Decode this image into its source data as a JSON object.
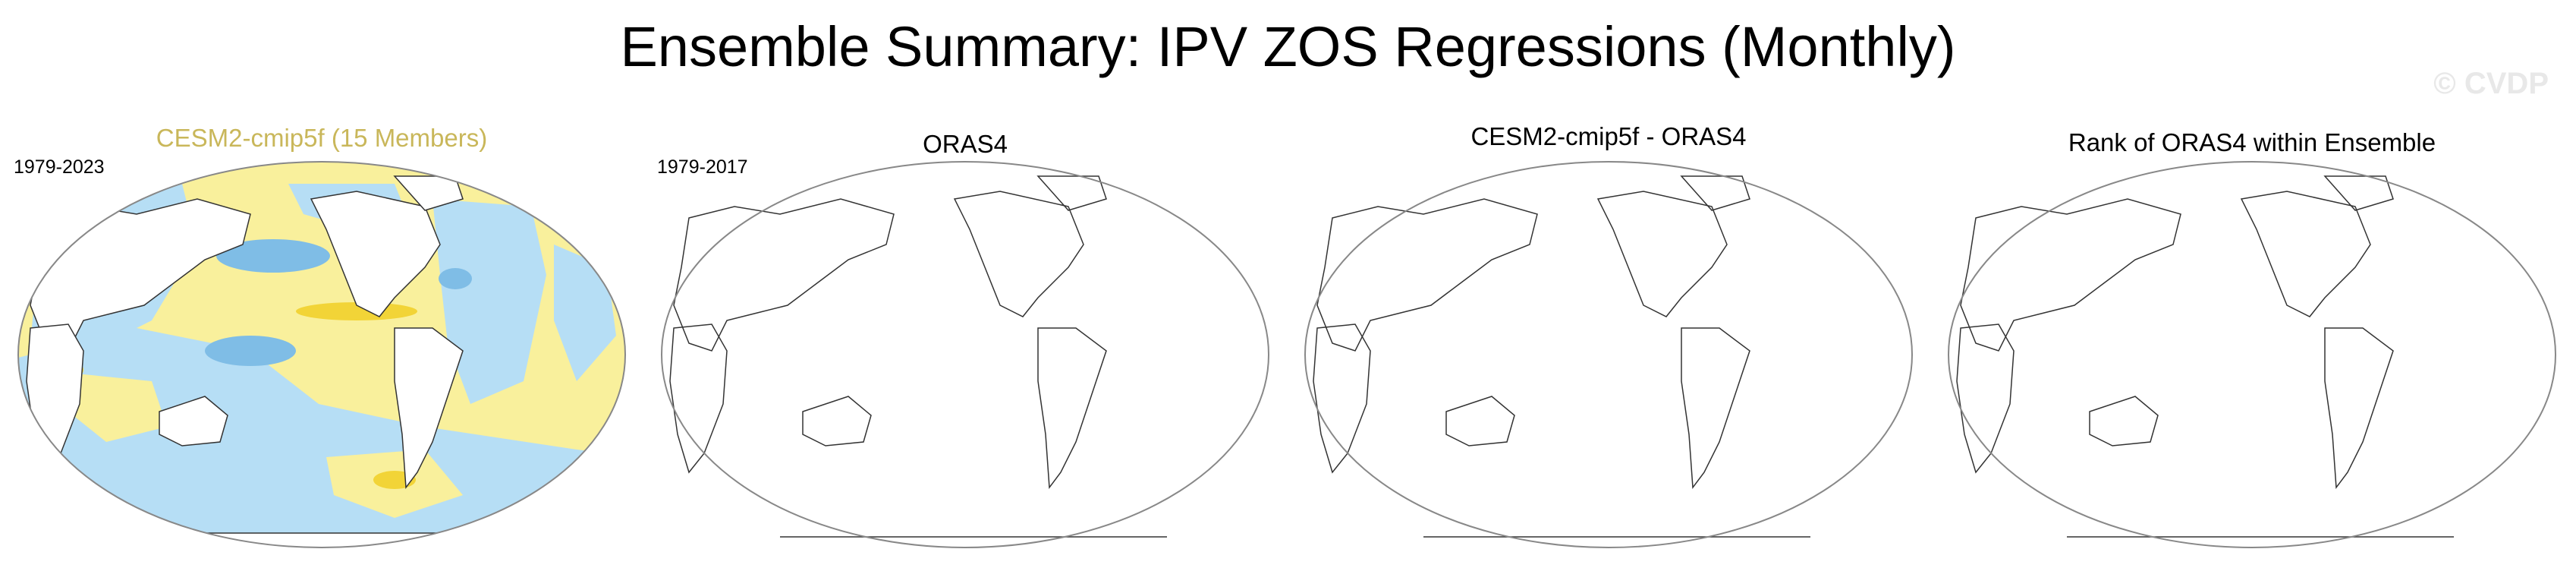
{
  "title": "Ensemble Summary: IPV ZOS Regressions (Monthly)",
  "watermark": "© CVDP",
  "colors": {
    "ensemble_title": "#c9b75a",
    "positive_fill": "#f9f09c",
    "positive_strong": "#f2d437",
    "negative_fill": "#b6def5",
    "negative_strong": "#7fbde6",
    "coastline": "#333333"
  },
  "panels": [
    {
      "title": "CESM2-cmip5f (15 Members)",
      "period": "1979-2023",
      "filled": true
    },
    {
      "title": "ORAS4",
      "period": "1979-2017",
      "filled": false
    },
    {
      "title": "CESM2-cmip5f - ORAS4",
      "period": "",
      "filled": false
    },
    {
      "title": "Rank of ORAS4 within Ensemble",
      "period": "",
      "filled": false
    }
  ]
}
